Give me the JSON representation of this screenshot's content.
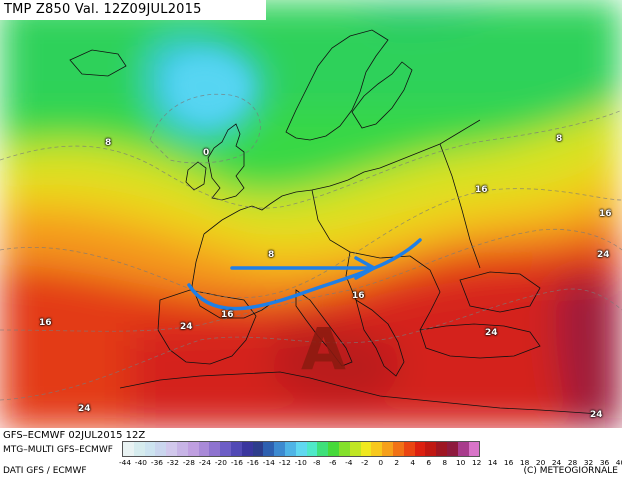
{
  "title": "TMP  Z850  Val.  12Z09JUL2015",
  "footer": {
    "model_run": "GFS–ECMWF  02JUL2015  12Z",
    "subtitle": "MTG–MULTI  GFS–ECMWF",
    "source": "DATI GFS / ECMWF",
    "copyright": "(C) METEOGIORNALE"
  },
  "legend": {
    "values": [
      "-44",
      "-40",
      "-36",
      "-32",
      "-28",
      "-24",
      "-20",
      "-16",
      "-16",
      "-14",
      "-12",
      "-10",
      "-8",
      "-6",
      "-4",
      "-2",
      "0",
      "2",
      "4",
      "6",
      "8",
      "10",
      "12",
      "14",
      "16",
      "18",
      "20",
      "24",
      "28",
      "32",
      "36",
      "40",
      "44"
    ],
    "colors": [
      "#e9f3f3",
      "#d6ecee",
      "#cde4f0",
      "#cad6ee",
      "#d1c8ec",
      "#c7b4e6",
      "#bf9fe0",
      "#a98ad8",
      "#8e73cf",
      "#6d5ec6",
      "#5149b5",
      "#3a369e",
      "#2d3d8c",
      "#2e60b0",
      "#3d8ad0",
      "#4fb4e6",
      "#60d8f0",
      "#4fe8c8",
      "#3ee07a",
      "#46d93a",
      "#84e02c",
      "#c0e624",
      "#f0e820",
      "#f7c81d",
      "#f6a01b",
      "#f17216",
      "#ea4512",
      "#dc2010",
      "#c01812",
      "#9e1622",
      "#8e1a3e",
      "#a83c8c",
      "#d874c8"
    ]
  },
  "isotherm_labels": [
    {
      "text": "0"
    },
    {
      "text": "8"
    },
    {
      "text": "8"
    },
    {
      "text": "8"
    },
    {
      "text": "16"
    },
    {
      "text": "16"
    },
    {
      "text": "16"
    },
    {
      "text": "16"
    },
    {
      "text": "16"
    },
    {
      "text": "24"
    },
    {
      "text": "24"
    },
    {
      "text": "24"
    },
    {
      "text": "24"
    },
    {
      "text": "24"
    }
  ],
  "pressure_center": {
    "label": "A",
    "meaning": "high pressure"
  },
  "overlay": {
    "arrow_color": "#1f7fe6"
  },
  "colors": {
    "cold": "#3fc9e6",
    "cool": "#39d845",
    "mild": "#e8e21c",
    "warm": "#f38b1a",
    "hot": "#e33017",
    "very_hot": "#a31836"
  }
}
